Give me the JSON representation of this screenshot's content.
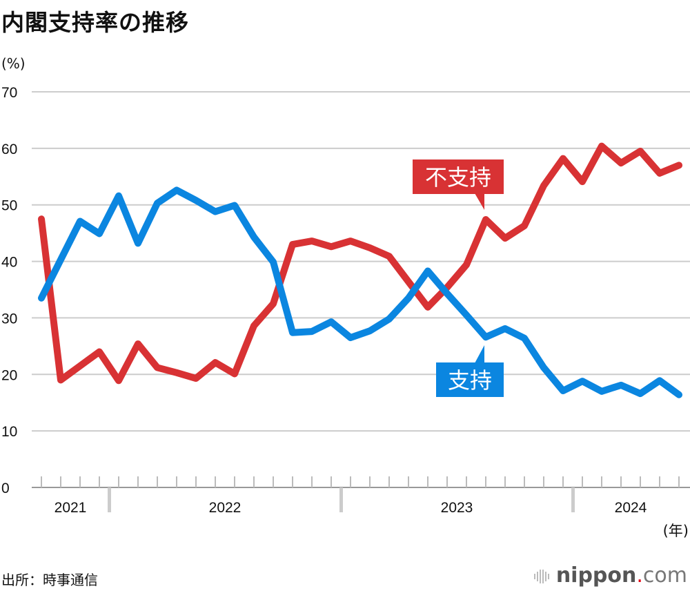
{
  "title": "内閣支持率の推移",
  "source": "出所：時事通信",
  "logo": {
    "name": "nippon",
    "dot": ".",
    "suffix": "com"
  },
  "chart_data": {
    "type": "line",
    "ylabel": "(%)",
    "xlabel": "(年)",
    "ylim": [
      0,
      70
    ],
    "yticks": [
      0,
      10,
      20,
      30,
      40,
      50,
      60,
      70
    ],
    "grid": true,
    "year_labels": [
      "2021",
      "2022",
      "2023",
      "2024"
    ],
    "x": [
      "2021-09",
      "2021-10",
      "2021-11",
      "2021-12",
      "2022-01",
      "2022-02",
      "2022-03",
      "2022-04",
      "2022-05",
      "2022-06",
      "2022-07",
      "2022-08",
      "2022-09",
      "2022-10",
      "2022-11",
      "2022-12",
      "2023-01",
      "2023-02",
      "2023-03",
      "2023-04",
      "2023-05",
      "2023-06",
      "2023-07",
      "2023-08",
      "2023-09",
      "2023-10",
      "2023-11",
      "2023-12",
      "2024-01",
      "2024-02",
      "2024-03",
      "2024-04",
      "2024-05",
      "2024-06"
    ],
    "series": [
      {
        "name": "不支持",
        "color": "#d83234",
        "values": [
          47.5,
          19.0,
          21.5,
          24.0,
          18.9,
          25.4,
          21.2,
          20.3,
          19.3,
          22.1,
          20.1,
          28.6,
          32.5,
          43.0,
          43.6,
          42.6,
          43.6,
          42.4,
          40.9,
          36.4,
          31.9,
          35.4,
          39.4,
          47.4,
          44.1,
          46.3,
          53.4,
          58.2,
          54.1,
          60.4,
          57.4,
          59.5,
          55.6,
          57.0
        ]
      },
      {
        "name": "支持",
        "color": "#0b86e0",
        "values": [
          33.5,
          40.3,
          47.1,
          44.9,
          51.6,
          43.2,
          50.3,
          52.6,
          50.8,
          48.8,
          49.9,
          44.3,
          39.9,
          27.4,
          27.6,
          29.3,
          26.5,
          27.7,
          29.8,
          33.5,
          38.3,
          34.3,
          30.5,
          26.6,
          28.1,
          26.4,
          21.2,
          17.1,
          18.8,
          17.0,
          18.1,
          16.6,
          18.9,
          16.4
        ]
      }
    ]
  }
}
